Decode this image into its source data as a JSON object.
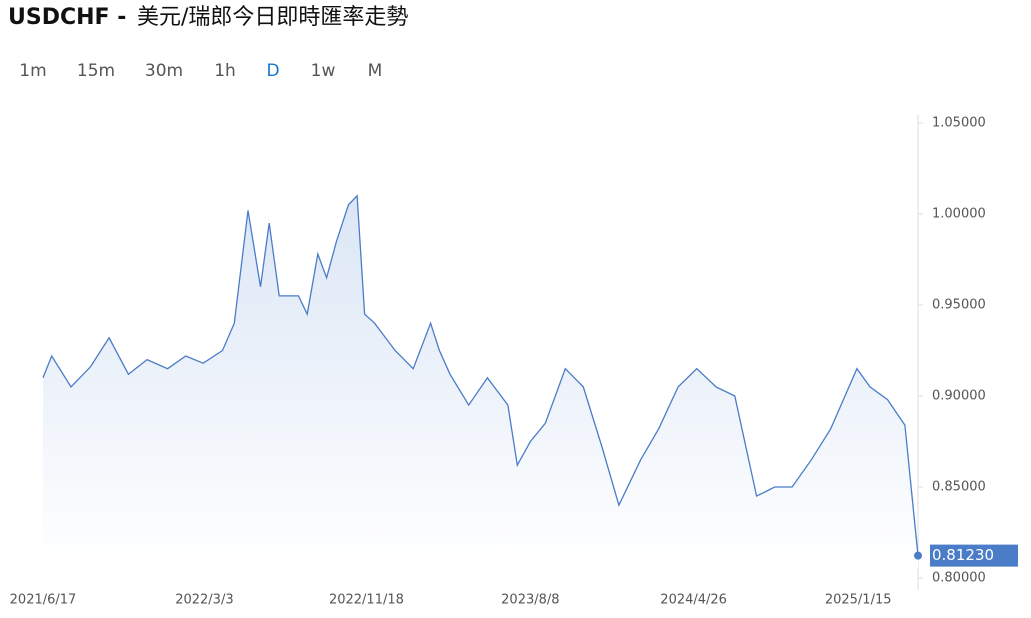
{
  "header": {
    "symbol": "USDCHF -",
    "title": "美元/瑞郎今日即時匯率走勢"
  },
  "timeframes": [
    "1m",
    "15m",
    "30m",
    "1h",
    "D",
    "1w",
    "M"
  ],
  "active_timeframe": 4,
  "chart_data": {
    "type": "line",
    "color": "#4a7cc7",
    "x": [
      "2021/6/17",
      "2021/7/1",
      "2021/8/1",
      "2021/9/1",
      "2021/10/1",
      "2021/11/1",
      "2021/12/1",
      "2022/1/3",
      "2022/2/1",
      "2022/3/1",
      "2022/4/1",
      "2022/4/20",
      "2022/5/12",
      "2022/6/1",
      "2022/6/15",
      "2022/7/1",
      "2022/8/1",
      "2022/8/15",
      "2022/9/1",
      "2022/9/15",
      "2022/10/1",
      "2022/10/20",
      "2022/11/3",
      "2022/11/15",
      "2022/12/1",
      "2023/1/3",
      "2023/2/1",
      "2023/3/1",
      "2023/3/15",
      "2023/4/1",
      "2023/5/1",
      "2023/5/31",
      "2023/7/3",
      "2023/7/18",
      "2023/8/8",
      "2023/9/1",
      "2023/10/3",
      "2023/11/1",
      "2023/12/1",
      "2023/12/28",
      "2024/2/1",
      "2024/3/1",
      "2024/4/1",
      "2024/5/1",
      "2024/6/1",
      "2024/7/1",
      "2024/8/5",
      "2024/9/3",
      "2024/10/1",
      "2024/11/1",
      "2024/12/2",
      "2025/1/13",
      "2025/2/3",
      "2025/3/3",
      "2025/3/31",
      "2025/4/10",
      "2025/4/21"
    ],
    "values": [
      0.91,
      0.922,
      0.905,
      0.916,
      0.932,
      0.912,
      0.92,
      0.915,
      0.922,
      0.918,
      0.925,
      0.94,
      1.002,
      0.96,
      0.995,
      0.955,
      0.955,
      0.945,
      0.978,
      0.965,
      0.985,
      1.005,
      1.01,
      0.945,
      0.94,
      0.925,
      0.915,
      0.94,
      0.925,
      0.912,
      0.895,
      0.91,
      0.895,
      0.862,
      0.875,
      0.885,
      0.915,
      0.905,
      0.872,
      0.84,
      0.865,
      0.882,
      0.905,
      0.915,
      0.905,
      0.9,
      0.845,
      0.85,
      0.85,
      0.865,
      0.882,
      0.915,
      0.905,
      0.898,
      0.884,
      0.85,
      0.8123
    ],
    "last_price": {
      "value": 0.8123,
      "label": "0.81230"
    },
    "xlim": [
      "2021/6/17",
      "2025/4/21"
    ],
    "xticks": [
      "2021/6/17",
      "2022/3/3",
      "2022/11/18",
      "2023/8/8",
      "2024/4/26",
      "2025/1/15"
    ],
    "ylim": [
      0.8,
      1.05
    ],
    "yticks": [
      {
        "value": 0.8,
        "label": "0.80000"
      },
      {
        "value": 0.85,
        "label": "0.85000"
      },
      {
        "value": 0.9,
        "label": "0.90000"
      },
      {
        "value": 0.95,
        "label": "0.95000"
      },
      {
        "value": 1.0,
        "label": "1.00000"
      },
      {
        "value": 1.05,
        "label": "1.05000"
      }
    ]
  }
}
